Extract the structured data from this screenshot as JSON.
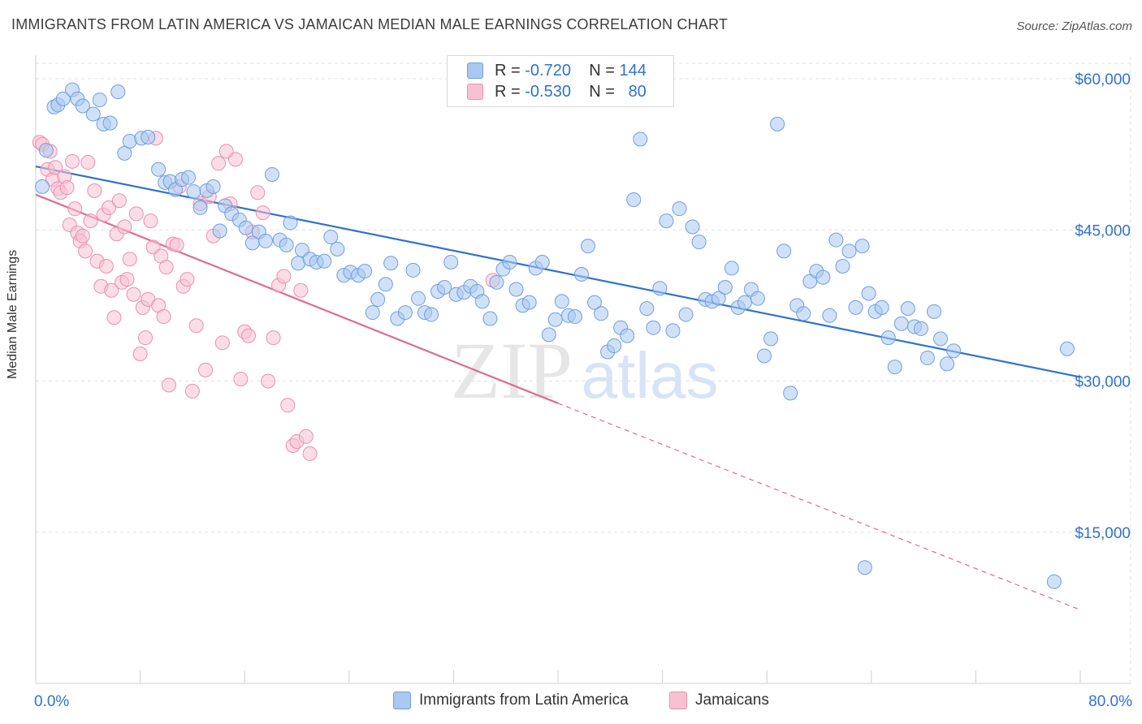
{
  "title": "IMMIGRANTS FROM LATIN AMERICA VS JAMAICAN MEDIAN MALE EARNINGS CORRELATION CHART",
  "source": "Source: ZipAtlas.com",
  "watermark": {
    "zip": "ZIP",
    "atlas": "atlas"
  },
  "legend": {
    "r_label": "R =",
    "n_label": "N =",
    "rows": [
      {
        "r": "-0.720",
        "n": "144"
      },
      {
        "r": "-0.530",
        "n": "80"
      }
    ]
  },
  "chart_data": {
    "type": "scatter",
    "ylabel": "Median Male Earnings",
    "x_tick_labels": [
      "0.0%",
      "80.0%"
    ],
    "y_tick_labels": [
      "$15,000",
      "$30,000",
      "$45,000",
      "$60,000"
    ],
    "xlim": [
      0,
      80
    ],
    "ylim": [
      0,
      63000
    ],
    "y_ticks": [
      15000,
      30000,
      45000,
      60000
    ],
    "grid": true,
    "colors": {
      "blue_fill": "#aac8f0",
      "blue_stroke": "#6f9fe0",
      "blue_line": "#2f72d0",
      "pink_fill": "#f7c1d2",
      "pink_stroke": "#eb8fb0",
      "pink_line": "#e06a94",
      "tick_text": "#2f72d0",
      "grid": "#e2e2e2"
    },
    "series": [
      {
        "name": "Immigrants from Latin America",
        "trend": {
          "x0": 0,
          "y0": 51300,
          "x1": 80,
          "y1": 30400
        },
        "points": [
          [
            0.5,
            49300
          ],
          [
            0.8,
            52900
          ],
          [
            1.4,
            57200
          ],
          [
            1.7,
            57400
          ],
          [
            2.1,
            58000
          ],
          [
            2.8,
            58900
          ],
          [
            3.2,
            58000
          ],
          [
            3.6,
            57300
          ],
          [
            4.4,
            56500
          ],
          [
            4.9,
            57900
          ],
          [
            5.2,
            55500
          ],
          [
            5.7,
            55600
          ],
          [
            6.3,
            58700
          ],
          [
            6.8,
            52600
          ],
          [
            7.2,
            53800
          ],
          [
            8.1,
            54100
          ],
          [
            8.6,
            54200
          ],
          [
            9.4,
            51000
          ],
          [
            9.9,
            49700
          ],
          [
            10.3,
            49800
          ],
          [
            10.7,
            49000
          ],
          [
            11.2,
            50000
          ],
          [
            11.7,
            50200
          ],
          [
            12.1,
            48800
          ],
          [
            12.6,
            47200
          ],
          [
            13.1,
            48900
          ],
          [
            13.6,
            49300
          ],
          [
            14.1,
            44900
          ],
          [
            14.5,
            47400
          ],
          [
            15.0,
            46600
          ],
          [
            15.6,
            46000
          ],
          [
            16.1,
            45200
          ],
          [
            16.6,
            43700
          ],
          [
            17.1,
            44800
          ],
          [
            17.6,
            43900
          ],
          [
            18.1,
            50500
          ],
          [
            18.7,
            44000
          ],
          [
            19.2,
            43500
          ],
          [
            19.5,
            45700
          ],
          [
            20.1,
            41700
          ],
          [
            20.4,
            43000
          ],
          [
            21.0,
            42100
          ],
          [
            21.5,
            41800
          ],
          [
            22.1,
            41900
          ],
          [
            22.6,
            44300
          ],
          [
            23.1,
            43100
          ],
          [
            23.6,
            40500
          ],
          [
            24.1,
            40800
          ],
          [
            24.7,
            40500
          ],
          [
            25.2,
            40900
          ],
          [
            25.8,
            36800
          ],
          [
            26.2,
            38100
          ],
          [
            26.8,
            39600
          ],
          [
            27.2,
            41700
          ],
          [
            27.7,
            36200
          ],
          [
            28.3,
            36800
          ],
          [
            28.9,
            41000
          ],
          [
            29.3,
            38200
          ],
          [
            29.8,
            36800
          ],
          [
            30.3,
            36600
          ],
          [
            30.8,
            38900
          ],
          [
            31.3,
            39300
          ],
          [
            31.8,
            41800
          ],
          [
            32.2,
            38600
          ],
          [
            32.8,
            38800
          ],
          [
            33.3,
            39400
          ],
          [
            33.8,
            38900
          ],
          [
            34.2,
            37900
          ],
          [
            34.8,
            36200
          ],
          [
            35.3,
            39800
          ],
          [
            35.8,
            41100
          ],
          [
            36.3,
            41800
          ],
          [
            36.8,
            39100
          ],
          [
            37.3,
            37500
          ],
          [
            37.8,
            37800
          ],
          [
            38.3,
            41200
          ],
          [
            38.8,
            41800
          ],
          [
            39.3,
            34600
          ],
          [
            39.8,
            36100
          ],
          [
            40.3,
            37900
          ],
          [
            40.8,
            36500
          ],
          [
            41.3,
            36400
          ],
          [
            41.8,
            40600
          ],
          [
            42.3,
            43400
          ],
          [
            42.8,
            37800
          ],
          [
            43.3,
            36700
          ],
          [
            43.8,
            32900
          ],
          [
            44.3,
            33500
          ],
          [
            44.8,
            35300
          ],
          [
            45.3,
            34500
          ],
          [
            45.8,
            48000
          ],
          [
            46.3,
            54000
          ],
          [
            46.8,
            37200
          ],
          [
            47.3,
            35300
          ],
          [
            47.8,
            39200
          ],
          [
            48.3,
            45900
          ],
          [
            48.8,
            35000
          ],
          [
            49.3,
            47100
          ],
          [
            49.8,
            36600
          ],
          [
            50.3,
            45300
          ],
          [
            50.8,
            43800
          ],
          [
            51.3,
            38100
          ],
          [
            51.8,
            37900
          ],
          [
            52.3,
            38200
          ],
          [
            52.8,
            39300
          ],
          [
            53.3,
            41200
          ],
          [
            53.8,
            37300
          ],
          [
            54.3,
            37800
          ],
          [
            54.8,
            39100
          ],
          [
            55.3,
            38200
          ],
          [
            55.8,
            32500
          ],
          [
            56.3,
            34200
          ],
          [
            56.8,
            55500
          ],
          [
            57.3,
            42900
          ],
          [
            57.8,
            28800
          ],
          [
            58.3,
            37500
          ],
          [
            58.8,
            36700
          ],
          [
            59.3,
            39900
          ],
          [
            59.8,
            40900
          ],
          [
            60.3,
            40300
          ],
          [
            60.8,
            36500
          ],
          [
            61.3,
            44000
          ],
          [
            61.8,
            41400
          ],
          [
            62.3,
            42900
          ],
          [
            62.8,
            37300
          ],
          [
            63.3,
            43400
          ],
          [
            63.8,
            38700
          ],
          [
            64.3,
            36900
          ],
          [
            64.8,
            37300
          ],
          [
            65.3,
            34300
          ],
          [
            65.8,
            31400
          ],
          [
            66.3,
            35700
          ],
          [
            66.8,
            37200
          ],
          [
            67.3,
            35400
          ],
          [
            67.8,
            35200
          ],
          [
            68.3,
            32300
          ],
          [
            68.8,
            36900
          ],
          [
            69.3,
            34200
          ],
          [
            69.8,
            31700
          ],
          [
            70.3,
            33000
          ],
          [
            63.5,
            11500
          ],
          [
            78.0,
            10100
          ],
          [
            79.0,
            33200
          ]
        ]
      },
      {
        "name": "Jamaicans",
        "trend": {
          "x0": 0,
          "y0": 48500,
          "x1": 40,
          "y1": 27800
        },
        "trend_dashed": {
          "x0": 40,
          "y0": 27800,
          "x1": 80,
          "y1": 7300
        },
        "points": [
          [
            0.3,
            53700
          ],
          [
            0.5,
            53500
          ],
          [
            0.9,
            51000
          ],
          [
            1.1,
            52800
          ],
          [
            1.3,
            50000
          ],
          [
            1.5,
            51200
          ],
          [
            1.7,
            49100
          ],
          [
            1.9,
            48700
          ],
          [
            2.2,
            50300
          ],
          [
            2.4,
            49200
          ],
          [
            2.6,
            45500
          ],
          [
            2.8,
            51800
          ],
          [
            3.0,
            47100
          ],
          [
            3.2,
            44700
          ],
          [
            3.4,
            43900
          ],
          [
            3.6,
            44400
          ],
          [
            3.8,
            42900
          ],
          [
            4.0,
            51700
          ],
          [
            4.2,
            45900
          ],
          [
            4.5,
            48900
          ],
          [
            4.7,
            41900
          ],
          [
            5.0,
            39400
          ],
          [
            5.2,
            46500
          ],
          [
            5.4,
            41400
          ],
          [
            5.6,
            47200
          ],
          [
            5.8,
            39000
          ],
          [
            6.0,
            36300
          ],
          [
            6.2,
            44600
          ],
          [
            6.4,
            47900
          ],
          [
            6.6,
            39800
          ],
          [
            6.8,
            45300
          ],
          [
            7.0,
            40100
          ],
          [
            7.2,
            42100
          ],
          [
            7.5,
            38600
          ],
          [
            7.7,
            46600
          ],
          [
            8.0,
            32700
          ],
          [
            8.2,
            37300
          ],
          [
            8.4,
            34300
          ],
          [
            8.6,
            38100
          ],
          [
            8.8,
            45900
          ],
          [
            9.0,
            43300
          ],
          [
            9.2,
            54100
          ],
          [
            9.4,
            37500
          ],
          [
            9.6,
            42400
          ],
          [
            9.8,
            36400
          ],
          [
            10.0,
            41300
          ],
          [
            10.2,
            29600
          ],
          [
            10.5,
            43600
          ],
          [
            10.8,
            43500
          ],
          [
            11.0,
            49300
          ],
          [
            11.3,
            39400
          ],
          [
            11.6,
            40100
          ],
          [
            12.0,
            29000
          ],
          [
            12.3,
            35500
          ],
          [
            12.6,
            47600
          ],
          [
            13.0,
            31100
          ],
          [
            13.3,
            48300
          ],
          [
            13.6,
            44400
          ],
          [
            14.0,
            51600
          ],
          [
            14.3,
            33800
          ],
          [
            14.6,
            52800
          ],
          [
            14.9,
            47600
          ],
          [
            15.3,
            52000
          ],
          [
            15.7,
            30200
          ],
          [
            16.0,
            34900
          ],
          [
            16.3,
            34500
          ],
          [
            16.6,
            44800
          ],
          [
            17.0,
            48700
          ],
          [
            17.4,
            46700
          ],
          [
            17.8,
            30000
          ],
          [
            18.2,
            34300
          ],
          [
            18.6,
            39500
          ],
          [
            19.0,
            40400
          ],
          [
            19.3,
            27600
          ],
          [
            19.7,
            23600
          ],
          [
            20.0,
            24000
          ],
          [
            20.3,
            39000
          ],
          [
            20.7,
            24500
          ],
          [
            21.0,
            22800
          ],
          [
            35.0,
            40000
          ]
        ]
      }
    ]
  }
}
